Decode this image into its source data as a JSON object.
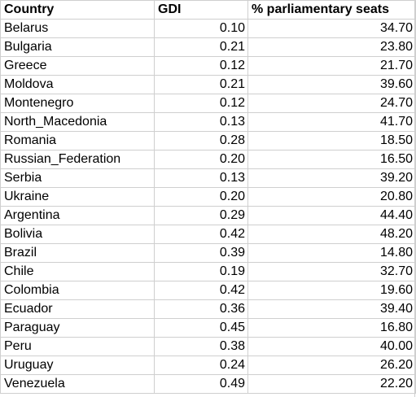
{
  "table": {
    "headers": [
      "Country",
      "GDI",
      "% parliamentary seats"
    ],
    "rows": [
      {
        "country": "Belarus",
        "gdi": "0.10",
        "seats": "34.70"
      },
      {
        "country": "Bulgaria",
        "gdi": "0.21",
        "seats": "23.80"
      },
      {
        "country": "Greece",
        "gdi": "0.12",
        "seats": "21.70"
      },
      {
        "country": "Moldova",
        "gdi": "0.21",
        "seats": "39.60"
      },
      {
        "country": "Montenegro",
        "gdi": "0.12",
        "seats": "24.70"
      },
      {
        "country": "North_Macedonia",
        "gdi": "0.13",
        "seats": "41.70"
      },
      {
        "country": "Romania",
        "gdi": "0.28",
        "seats": "18.50"
      },
      {
        "country": "Russian_Federation",
        "gdi": "0.20",
        "seats": "16.50"
      },
      {
        "country": "Serbia",
        "gdi": "0.13",
        "seats": "39.20"
      },
      {
        "country": "Ukraine",
        "gdi": "0.20",
        "seats": "20.80"
      },
      {
        "country": "Argentina",
        "gdi": "0.29",
        "seats": "44.40"
      },
      {
        "country": "Bolivia",
        "gdi": "0.42",
        "seats": "48.20"
      },
      {
        "country": "Brazil",
        "gdi": "0.39",
        "seats": "14.80"
      },
      {
        "country": "Chile",
        "gdi": "0.19",
        "seats": "32.70"
      },
      {
        "country": "Colombia",
        "gdi": "0.42",
        "seats": "19.60"
      },
      {
        "country": "Ecuador",
        "gdi": "0.36",
        "seats": "39.40"
      },
      {
        "country": "Paraguay",
        "gdi": "0.45",
        "seats": "16.80"
      },
      {
        "country": "Peru",
        "gdi": "0.38",
        "seats": "40.00"
      },
      {
        "country": "Uruguay",
        "gdi": "0.24",
        "seats": "26.20"
      },
      {
        "country": "Venezuela",
        "gdi": "0.49",
        "seats": "22.20"
      }
    ]
  }
}
